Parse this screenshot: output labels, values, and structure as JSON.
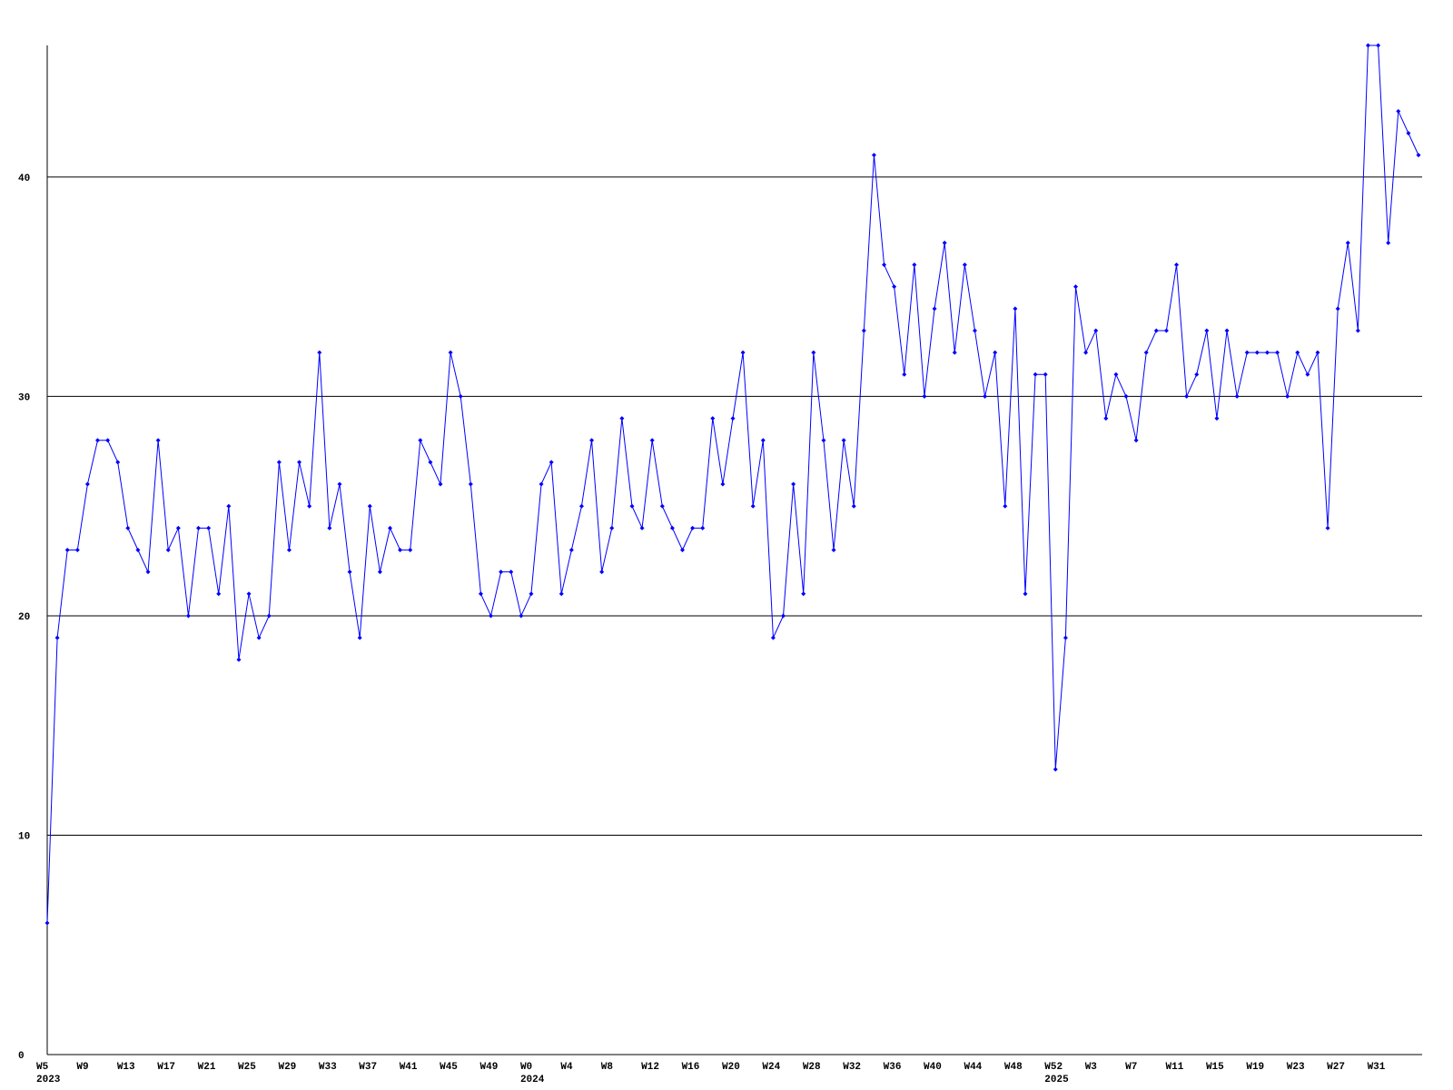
{
  "chart_data": {
    "type": "line",
    "categories": [
      "W5",
      null,
      null,
      null,
      "W9",
      null,
      null,
      null,
      "W13",
      null,
      null,
      null,
      "W17",
      null,
      null,
      null,
      "W21",
      null,
      null,
      null,
      "W25",
      null,
      null,
      null,
      "W29",
      null,
      null,
      null,
      "W33",
      null,
      null,
      null,
      "W37",
      null,
      null,
      null,
      "W41",
      null,
      null,
      null,
      "W45",
      null,
      null,
      null,
      "W49",
      null,
      null,
      null,
      "W0",
      null,
      null,
      null,
      "W4",
      null,
      null,
      null,
      "W8",
      null,
      null,
      null,
      "W12",
      null,
      null,
      null,
      "W16",
      null,
      null,
      null,
      "W20",
      null,
      null,
      null,
      "W24",
      null,
      null,
      null,
      "W28",
      null,
      null,
      null,
      "W32",
      null,
      null,
      null,
      "W36",
      null,
      null,
      null,
      "W40",
      null,
      null,
      null,
      "W44",
      null,
      null,
      null,
      "W48",
      null,
      null,
      null,
      "W52",
      null,
      null,
      null,
      "W3",
      null,
      null,
      null,
      "W7",
      null,
      null,
      null,
      "W11",
      null,
      null,
      null,
      "W15",
      null,
      null,
      null,
      "W19",
      null,
      null,
      null,
      "W23",
      null,
      null,
      null,
      "W27",
      null,
      null,
      null,
      "W31",
      null,
      null,
      null,
      null
    ],
    "category_years": [
      "2023",
      null,
      null,
      null,
      null,
      null,
      null,
      null,
      null,
      null,
      null,
      null,
      null,
      null,
      null,
      null,
      null,
      null,
      null,
      null,
      null,
      null,
      null,
      null,
      null,
      null,
      null,
      null,
      null,
      null,
      null,
      null,
      null,
      null,
      null,
      null,
      null,
      null,
      null,
      null,
      null,
      null,
      null,
      null,
      null,
      null,
      null,
      null,
      "2024",
      null,
      null,
      null,
      null,
      null,
      null,
      null,
      null,
      null,
      null,
      null,
      null,
      null,
      null,
      null,
      null,
      null,
      null,
      null,
      null,
      null,
      null,
      null,
      null,
      null,
      null,
      null,
      null,
      null,
      null,
      null,
      null,
      null,
      null,
      null,
      null,
      null,
      null,
      null,
      null,
      null,
      null,
      null,
      null,
      null,
      null,
      null,
      null,
      null,
      null,
      null,
      "2025",
      null,
      null,
      null,
      null,
      null,
      null,
      null,
      null,
      null,
      null,
      null,
      null,
      null,
      null,
      null,
      null,
      null,
      null,
      null,
      null,
      null,
      null,
      null,
      null,
      null,
      null,
      null,
      null,
      null,
      null,
      null,
      null,
      null,
      null,
      null,
      null
    ],
    "series": [
      {
        "color": "#0000ff",
        "values": [
          6,
          19,
          23,
          23,
          26,
          28,
          28,
          27,
          24,
          23,
          22,
          28,
          23,
          24,
          20,
          24,
          24,
          21,
          25,
          18,
          21,
          19,
          20,
          27,
          23,
          27,
          25,
          32,
          24,
          26,
          22,
          19,
          25,
          22,
          24,
          23,
          23,
          28,
          27,
          26,
          32,
          30,
          26,
          21,
          20,
          22,
          22,
          20,
          21,
          26,
          27,
          21,
          23,
          25,
          28,
          22,
          24,
          29,
          25,
          24,
          28,
          25,
          24,
          23,
          24,
          24,
          29,
          26,
          29,
          32,
          25,
          28,
          19,
          20,
          26,
          21,
          32,
          28,
          23,
          28,
          25,
          33,
          41,
          36,
          35,
          31,
          36,
          30,
          34,
          37,
          32,
          36,
          33,
          30,
          32,
          25,
          34,
          21,
          31,
          31,
          13,
          19,
          35,
          32,
          33,
          29,
          31,
          30,
          28,
          32,
          33,
          33,
          36,
          30,
          31,
          33,
          29,
          33,
          30,
          32,
          32,
          32,
          32,
          30,
          32,
          31,
          32,
          24,
          34,
          37,
          33,
          46,
          46,
          37,
          43,
          42,
          41
        ]
      }
    ],
    "ylim": [
      0,
      46
    ],
    "yticks": [
      0,
      10,
      20,
      30,
      40
    ],
    "grid": true
  }
}
